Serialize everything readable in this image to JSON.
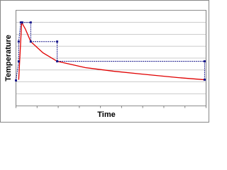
{
  "chart_data": {
    "type": "line",
    "x_label": "Time",
    "y_label": "Temperature",
    "xlim": [
      0,
      9
    ],
    "xticks": [
      0,
      1,
      2,
      3,
      4,
      5,
      6,
      7,
      8,
      9
    ],
    "ylim": [
      0,
      8
    ],
    "yticks": [
      0,
      1,
      2,
      3,
      4,
      5,
      6,
      7,
      8
    ],
    "grid": true,
    "series": [
      {
        "color": "#e00000",
        "marker": false,
        "x": [
          0.13,
          0.27,
          0.44,
          0.7,
          1.28,
          1.95,
          3.29,
          4.63,
          5.97,
          7.65,
          8.93
        ],
        "values": [
          2.19,
          6.98,
          6.45,
          5.38,
          4.44,
          3.73,
          3.2,
          2.9,
          2.66,
          2.37,
          2.19
        ]
      },
      {
        "color": "#1a1a8c",
        "marker": true,
        "x": [
          0,
          0.13,
          0.13,
          0.23,
          0.3,
          0.7,
          0.7,
          1.95,
          1.95,
          8.93,
          8.93
        ],
        "values": [
          2.13,
          3.73,
          5.38,
          6.98,
          6.98,
          6.98,
          5.38,
          5.38,
          3.73,
          3.73,
          2.19
        ]
      }
    ]
  }
}
